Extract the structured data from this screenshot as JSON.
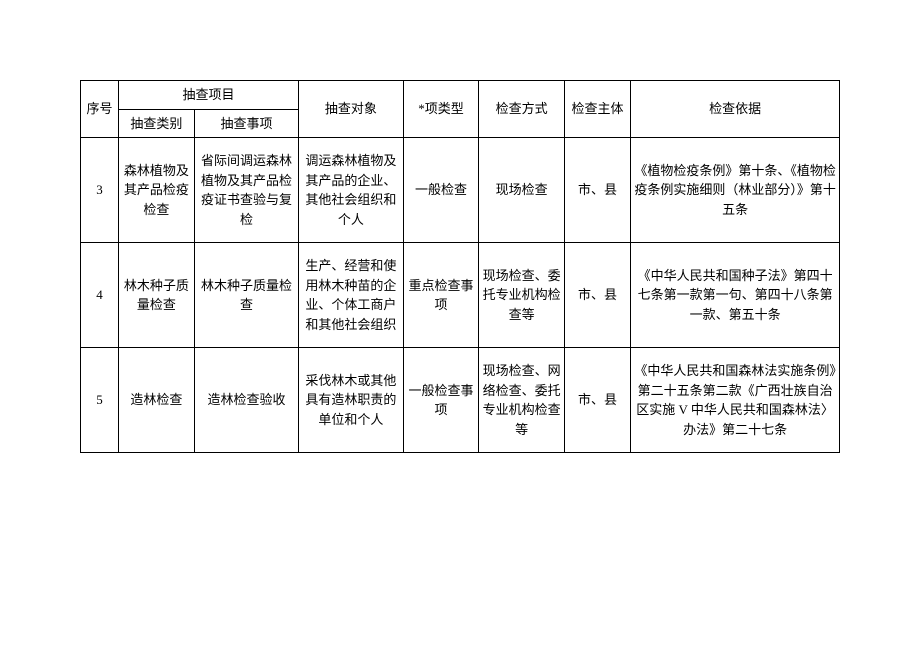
{
  "table": {
    "headers": {
      "seq": "序号",
      "project_group": "抽查项目",
      "category": "抽查类别",
      "item": "抽查事项",
      "object": "抽查对象",
      "type": "*项类型",
      "method": "检查方式",
      "subject": "检查主体",
      "basis": "检查依据"
    },
    "rows": [
      {
        "seq": "3",
        "category": "森林植物及其产品检疫检查",
        "item": "省际间调运森林植物及其产品检疫证书查验与复检",
        "object": "调运森林植物及其产品的企业、其他社会组织和个人",
        "type": "一般检查",
        "method": "现场检查",
        "subject": "市、县",
        "basis": "《植物检疫条例》第十条、《植物检疫条例实施细则（林业部分）》第十五条"
      },
      {
        "seq": "4",
        "category": "林木种子质量检查",
        "item": "林木种子质量检查",
        "object": "生产、经营和使用林木种苗的企业、个体工商户和其他社会组织",
        "type": "重点检查事项",
        "method": "现场检查、委托专业机构检查等",
        "subject": "市、县",
        "basis": "《中华人民共和国种子法》第四十七条第一款第一句、第四十八条第一款、第五十条"
      },
      {
        "seq": "5",
        "category": "造林检查",
        "item": "造林检查验收",
        "object": "采伐林木或其他具有造林职责的单位和个人",
        "type": "一般检查事项",
        "method": "现场检查、网络检查、委托专业机构检查等",
        "subject": "市、县",
        "basis": "《中华人民共和国森林法实施条例》第二十五条第二款《广西壮族自治区实施 V 中华人民共和国森林法〉办法》第二十七条"
      }
    ],
    "colors": {
      "border": "#000000",
      "background": "#ffffff",
      "text": "#000000"
    },
    "font_size": 13
  }
}
